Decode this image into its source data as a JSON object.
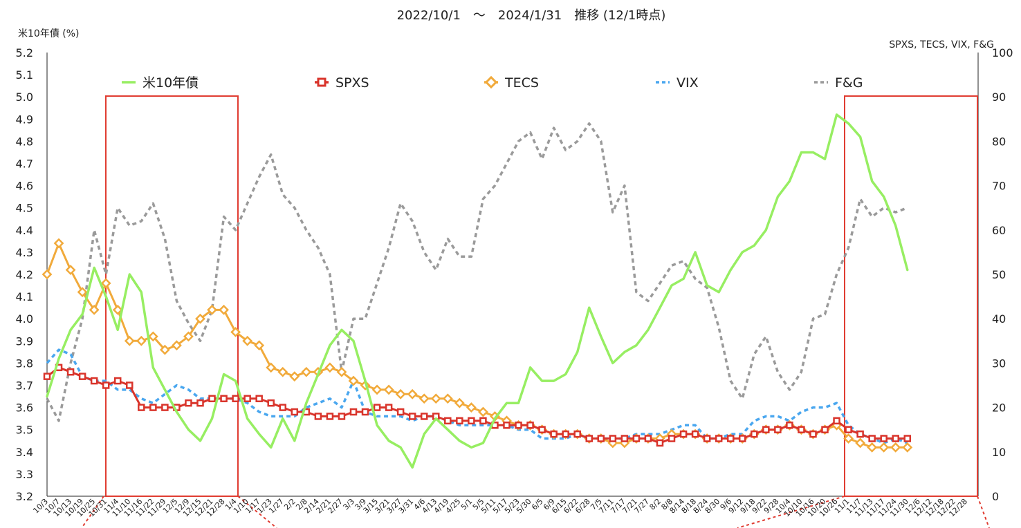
{
  "chart_data": {
    "type": "line",
    "title": "2022/10/1　～　2024/1/31　推移 (12/1時点)",
    "ylabel_left": "米10年債 (%)",
    "ylabel_right": "SPXS, TECS, VIX, F&G",
    "ylim_left": [
      3.2,
      5.2
    ],
    "ylim_right": [
      0,
      100
    ],
    "yticks_left": [
      "3.2",
      "3.3",
      "3.4",
      "3.5",
      "3.6",
      "3.7",
      "3.8",
      "3.9",
      "4.0",
      "4.1",
      "4.2",
      "4.3",
      "4.4",
      "4.5",
      "4.6",
      "4.7",
      "4.8",
      "4.9",
      "5.0",
      "5.1",
      "5.2"
    ],
    "yticks_right": [
      "0",
      "10",
      "20",
      "30",
      "40",
      "50",
      "60",
      "70",
      "80",
      "90",
      "100"
    ],
    "grid": false,
    "legend_position": "top",
    "x_tick_labels": [
      "10/3",
      "10/7",
      "10/13",
      "10/19",
      "10/25",
      "10/31",
      "11/4",
      "11/10",
      "11/16",
      "11/22",
      "11/29",
      "12/5",
      "12/9",
      "12/15",
      "12/21",
      "12/28",
      "1/4",
      "1/10",
      "1/17",
      "1/23",
      "1/27",
      "2/2",
      "2/8",
      "2/14",
      "2/21",
      "2/27",
      "3/3",
      "3/9",
      "3/15",
      "3/21",
      "3/27",
      "3/31",
      "4/6",
      "4/13",
      "4/19",
      "4/25",
      "5/1",
      "5/5",
      "5/11",
      "5/17",
      "5/23",
      "5/30",
      "6/5",
      "6/9",
      "6/15",
      "6/22",
      "6/28",
      "7/5",
      "7/11",
      "7/17",
      "7/21",
      "7/27",
      "8/2",
      "8/8",
      "8/14",
      "8/18",
      "8/24",
      "8/30",
      "9/6",
      "9/12",
      "9/18",
      "9/22",
      "9/28",
      "10/4",
      "10/10",
      "10/16",
      "10/20",
      "10/26",
      "11/1",
      "11/7",
      "11/13",
      "11/17",
      "11/24",
      "11/30",
      "12/6",
      "12/12",
      "12/18",
      "12/22",
      "12/28"
    ],
    "series": [
      {
        "name": "米10年債",
        "axis": "left",
        "color": "#97ee62",
        "style": "solid",
        "x": [
          0,
          1,
          2,
          3,
          4,
          5,
          6,
          7,
          8,
          9,
          10,
          11,
          12,
          13,
          14,
          15,
          16,
          17,
          18,
          19,
          20,
          21,
          22,
          23,
          24,
          25,
          26,
          27,
          28,
          29,
          30,
          31,
          32,
          33,
          34,
          35,
          36,
          37,
          38,
          39,
          40,
          41,
          42,
          43,
          44,
          45,
          46,
          47,
          48,
          49,
          50,
          51,
          52,
          53,
          54,
          55,
          56,
          57,
          58,
          59,
          60,
          61,
          62,
          63,
          64,
          65,
          66,
          67,
          68,
          69,
          70,
          71,
          72,
          73
        ],
        "values": [
          3.65,
          3.82,
          3.95,
          4.02,
          4.23,
          4.1,
          3.95,
          4.2,
          4.12,
          3.78,
          3.68,
          3.58,
          3.5,
          3.45,
          3.55,
          3.75,
          3.72,
          3.55,
          3.48,
          3.42,
          3.55,
          3.45,
          3.62,
          3.75,
          3.88,
          3.95,
          3.9,
          3.72,
          3.52,
          3.45,
          3.42,
          3.33,
          3.48,
          3.55,
          3.5,
          3.45,
          3.42,
          3.44,
          3.55,
          3.62,
          3.62,
          3.78,
          3.72,
          3.72,
          3.75,
          3.85,
          4.05,
          3.92,
          3.8,
          3.85,
          3.88,
          3.95,
          4.05,
          4.15,
          4.18,
          4.3,
          4.15,
          4.12,
          4.22,
          4.3,
          4.33,
          4.4,
          4.55,
          4.62,
          4.75,
          4.75,
          4.72,
          4.92,
          4.88,
          4.82,
          4.62,
          4.55,
          4.42,
          4.22
        ]
      },
      {
        "name": "SPXS",
        "axis": "right",
        "color": "#d9342b",
        "style": "marker",
        "x": [
          0,
          1,
          2,
          3,
          4,
          5,
          6,
          7,
          8,
          9,
          10,
          11,
          12,
          13,
          14,
          15,
          16,
          17,
          18,
          19,
          20,
          21,
          22,
          23,
          24,
          25,
          26,
          27,
          28,
          29,
          30,
          31,
          32,
          33,
          34,
          35,
          36,
          37,
          38,
          39,
          40,
          41,
          42,
          43,
          44,
          45,
          46,
          47,
          48,
          49,
          50,
          51,
          52,
          53,
          54,
          55,
          56,
          57,
          58,
          59,
          60,
          61,
          62,
          63,
          64,
          65,
          66,
          67,
          68,
          69,
          70,
          71,
          72,
          73
        ],
        "values": [
          27,
          29,
          28,
          27,
          26,
          25,
          26,
          25,
          20,
          20,
          20,
          20,
          21,
          21,
          22,
          22,
          22,
          22,
          22,
          21,
          20,
          19,
          19,
          18,
          18,
          18,
          19,
          19,
          20,
          20,
          19,
          18,
          18,
          18,
          17,
          17,
          17,
          17,
          16,
          16,
          16,
          16,
          15,
          14,
          14,
          14,
          13,
          13,
          13,
          13,
          13,
          13,
          12,
          13,
          14,
          14,
          13,
          13,
          13,
          13,
          14,
          15,
          15,
          16,
          15,
          14,
          15,
          17,
          15,
          14,
          13,
          13,
          13,
          13
        ]
      },
      {
        "name": "TECS",
        "axis": "right",
        "color": "#f1aa3b",
        "style": "marker",
        "x": [
          0,
          1,
          2,
          3,
          4,
          5,
          6,
          7,
          8,
          9,
          10,
          11,
          12,
          13,
          14,
          15,
          16,
          17,
          18,
          19,
          20,
          21,
          22,
          23,
          24,
          25,
          26,
          27,
          28,
          29,
          30,
          31,
          32,
          33,
          34,
          35,
          36,
          37,
          38,
          39,
          40,
          41,
          42,
          43,
          44,
          45,
          46,
          47,
          48,
          49,
          50,
          51,
          52,
          53,
          54,
          55,
          56,
          57,
          58,
          59,
          60,
          61,
          62,
          63,
          64,
          65,
          66,
          67,
          68,
          69,
          70,
          71,
          72,
          73
        ],
        "values": [
          50,
          57,
          51,
          46,
          42,
          48,
          42,
          35,
          35,
          36,
          33,
          34,
          36,
          40,
          42,
          42,
          37,
          35,
          34,
          29,
          28,
          27,
          28,
          28,
          29,
          28,
          26,
          25,
          24,
          24,
          23,
          23,
          22,
          22,
          22,
          21,
          20,
          19,
          18,
          17,
          16,
          16,
          15,
          14,
          14,
          14,
          13,
          13,
          12,
          12,
          13,
          13,
          13,
          14,
          14,
          14,
          13,
          13,
          13,
          13,
          14,
          15,
          15,
          16,
          15,
          14,
          15,
          16,
          13,
          12,
          11,
          11,
          11,
          11
        ]
      },
      {
        "name": "VIX",
        "axis": "right",
        "color": "#4aa7ef",
        "style": "dotted",
        "x": [
          0,
          1,
          2,
          3,
          4,
          5,
          6,
          7,
          8,
          9,
          10,
          11,
          12,
          13,
          14,
          15,
          16,
          17,
          18,
          19,
          20,
          21,
          22,
          23,
          24,
          25,
          26,
          27,
          28,
          29,
          30,
          31,
          32,
          33,
          34,
          35,
          36,
          37,
          38,
          39,
          40,
          41,
          42,
          43,
          44,
          45,
          46,
          47,
          48,
          49,
          50,
          51,
          52,
          53,
          54,
          55,
          56,
          57,
          58,
          59,
          60,
          61,
          62,
          63,
          64,
          65,
          66,
          67,
          68,
          69,
          70,
          71,
          72,
          73
        ],
        "values": [
          30,
          33,
          32,
          27,
          26,
          26,
          24,
          24,
          22,
          21,
          23,
          25,
          24,
          22,
          22,
          22,
          22,
          21,
          19,
          18,
          18,
          18,
          20,
          21,
          22,
          20,
          26,
          19,
          18,
          18,
          18,
          17,
          18,
          18,
          17,
          16,
          16,
          16,
          16,
          16,
          15,
          15,
          13,
          13,
          13,
          14,
          13,
          13,
          13,
          13,
          14,
          14,
          14,
          15,
          16,
          16,
          13,
          13,
          14,
          14,
          17,
          18,
          18,
          17,
          19,
          20,
          20,
          21,
          16,
          14,
          13,
          12,
          13,
          12
        ]
      },
      {
        "name": "F&G",
        "axis": "right",
        "color": "#9a9a9a",
        "style": "dotted",
        "x": [
          0,
          1,
          2,
          3,
          4,
          5,
          6,
          7,
          8,
          9,
          10,
          11,
          12,
          13,
          14,
          15,
          16,
          17,
          18,
          19,
          20,
          21,
          22,
          23,
          24,
          25,
          26,
          27,
          28,
          29,
          30,
          31,
          32,
          33,
          34,
          35,
          36,
          37,
          38,
          39,
          40,
          41,
          42,
          43,
          44,
          45,
          46,
          47,
          48,
          49,
          50,
          51,
          52,
          53,
          54,
          55,
          56,
          57,
          58,
          59,
          60,
          61,
          62,
          63,
          64,
          65,
          66,
          67,
          68,
          69,
          70,
          71,
          72,
          73
        ],
        "values": [
          22,
          17,
          30,
          40,
          60,
          50,
          65,
          61,
          62,
          66,
          58,
          44,
          39,
          35,
          42,
          63,
          60,
          66,
          72,
          77,
          68,
          65,
          60,
          56,
          50,
          28,
          40,
          40,
          48,
          56,
          66,
          62,
          55,
          51,
          58,
          54,
          54,
          67,
          70,
          75,
          80,
          82,
          76,
          83,
          78,
          80,
          84,
          80,
          64,
          70,
          46,
          44,
          48,
          52,
          53,
          49,
          47,
          38,
          26,
          22,
          32,
          36,
          28,
          24,
          28,
          40,
          41,
          50,
          56,
          67,
          63,
          65,
          64,
          65
        ]
      }
    ]
  }
}
